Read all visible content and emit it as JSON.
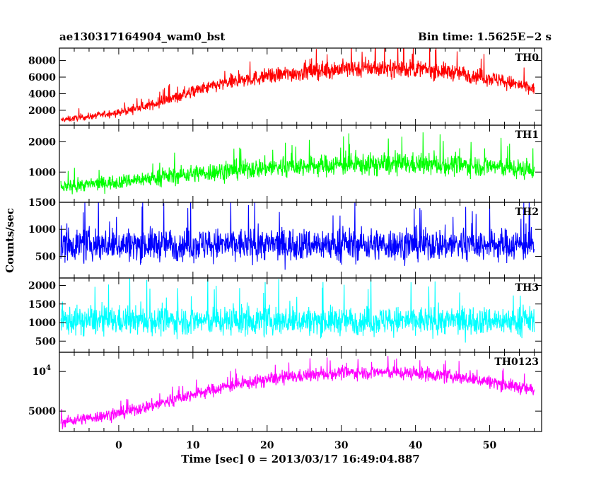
{
  "header": {
    "left_title": "ae130317164904_wam0_bst",
    "right_title": "Bin time: 1.5625E−2 s"
  },
  "xaxis": {
    "label": "Time [sec] 0 = 2013/03/17 16:49:04.887"
  },
  "yaxis": {
    "label": "Counts/sec"
  },
  "chart_data": {
    "type": "line",
    "title": "ae130317164904_wam0_bst",
    "subtitle": "Bin time: 1.5625E−2 s",
    "xlabel": "Time [sec] 0 = 2013/03/17 16:49:04.887",
    "ylabel": "Counts/sec",
    "xlim": [
      -8,
      57
    ],
    "x_ticks": [
      "0",
      "10",
      "20",
      "30",
      "40",
      "50"
    ],
    "grid": false,
    "panels": [
      {
        "name": "TH0",
        "color": "#ff0000",
        "ylim": [
          200,
          9500
        ],
        "y_ticks": [
          2000,
          4000,
          6000,
          8000
        ],
        "y_tick_labels": [
          "2000",
          "4000",
          "6000",
          "8000"
        ],
        "envelope_t": [
          -8,
          0,
          5,
          10,
          15,
          20,
          25,
          30,
          35,
          40,
          45,
          50,
          56
        ],
        "envelope_mean": [
          800,
          1700,
          2800,
          4300,
          5400,
          6100,
          6600,
          7000,
          7100,
          7000,
          6600,
          5900,
          4600
        ],
        "envelope_spread": [
          450,
          550,
          700,
          900,
          1100,
          1200,
          1300,
          1400,
          1400,
          1400,
          1300,
          1200,
          1000
        ]
      },
      {
        "name": "TH1",
        "color": "#00ff00",
        "ylim": [
          0,
          2550
        ],
        "y_ticks": [
          1000,
          2000
        ],
        "y_tick_labels": [
          "1000",
          "2000"
        ],
        "envelope_t": [
          -8,
          0,
          10,
          20,
          30,
          40,
          50,
          56
        ],
        "envelope_mean": [
          500,
          680,
          950,
          1150,
          1250,
          1260,
          1200,
          1050
        ],
        "envelope_spread": [
          260,
          300,
          380,
          430,
          450,
          450,
          420,
          400
        ]
      },
      {
        "name": "TH2",
        "color": "#0000ff",
        "ylim": [
          100,
          1500
        ],
        "y_ticks": [
          500,
          1000,
          1500
        ],
        "y_tick_labels": [
          "500",
          "1000",
          "1500"
        ],
        "envelope_t": [
          -8,
          56
        ],
        "envelope_mean": [
          720,
          720
        ],
        "envelope_spread": [
          380,
          380
        ]
      },
      {
        "name": "TH3",
        "color": "#00ffff",
        "ylim": [
          200,
          2200
        ],
        "y_ticks": [
          500,
          1000,
          1500,
          2000
        ],
        "y_tick_labels": [
          "500",
          "1000",
          "1500",
          "2000"
        ],
        "envelope_t": [
          -8,
          56
        ],
        "envelope_mean": [
          1050,
          1050
        ],
        "envelope_spread": [
          480,
          480
        ]
      },
      {
        "name": "TH0123",
        "color": "#ff00ff",
        "ylim": [
          3500,
          14000
        ],
        "scale": "log",
        "y_ticks": [
          5000,
          10000
        ],
        "y_tick_labels": [
          "5000",
          "10^4"
        ],
        "envelope_t": [
          -8,
          0,
          5,
          10,
          15,
          20,
          25,
          30,
          35,
          40,
          45,
          50,
          56
        ],
        "envelope_mean": [
          4100,
          4800,
          5600,
          6700,
          7800,
          8700,
          9300,
          9800,
          9900,
          9700,
          9200,
          8400,
          7200
        ],
        "envelope_spread": [
          500,
          650,
          800,
          950,
          1100,
          1250,
          1350,
          1400,
          1400,
          1400,
          1300,
          1200,
          1050
        ]
      }
    ]
  }
}
